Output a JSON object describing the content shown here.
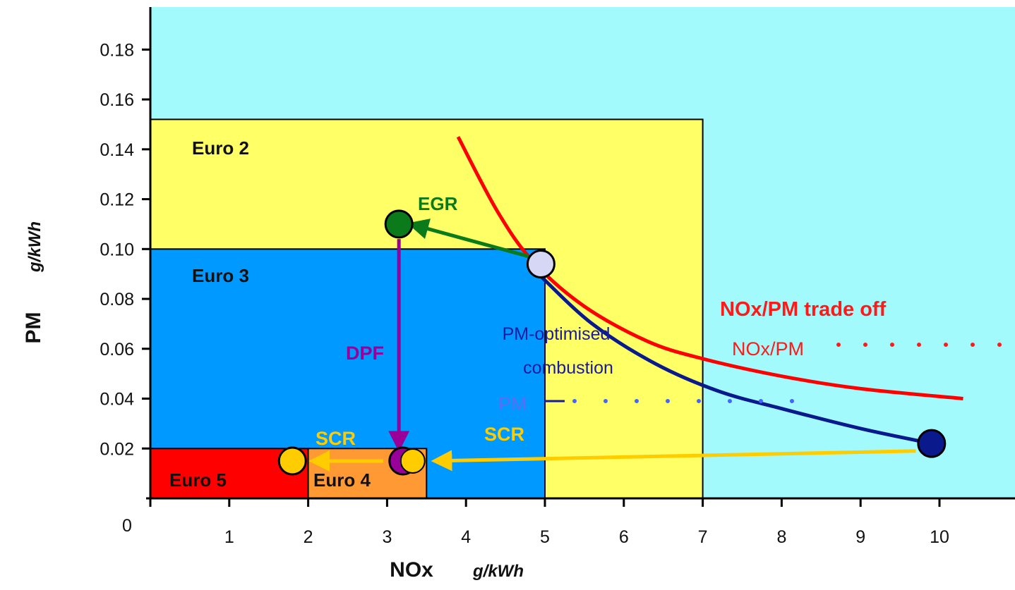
{
  "chart_data": {
    "type": "scatter",
    "title": "",
    "xlabel": "NOx",
    "xunit": "g/kWh",
    "ylabel": "PM",
    "yunit": "g/kWh",
    "xlim": [
      0,
      11
    ],
    "ylim": [
      0,
      0.19
    ],
    "origin_label": "0",
    "x_ticks": [
      1,
      2,
      3,
      4,
      5,
      6,
      7,
      8,
      9,
      10
    ],
    "y_ticks": [
      0.02,
      0.04,
      0.06,
      0.08,
      0.1,
      0.12,
      0.14,
      0.16,
      0.18
    ],
    "y_tick_labels": [
      "0.02",
      "0.04",
      "0.06",
      "0.08",
      "0.10",
      "0.12",
      "0.14",
      "0.16",
      "0.18"
    ],
    "background_color": "#a3fafc",
    "regions": [
      {
        "label": "Euro 2",
        "nox": 7.0,
        "pm": 0.152,
        "color": "#ffff66"
      },
      {
        "label": "Euro 3",
        "nox": 5.0,
        "pm": 0.1,
        "color": "#0099ff"
      },
      {
        "label": "Euro 4",
        "nox": 3.5,
        "pm": 0.02,
        "color": "#ff9933"
      },
      {
        "label": "Euro 5",
        "nox": 2.0,
        "pm": 0.02,
        "color": "#ff0000"
      }
    ],
    "tradeoff_curve": {
      "label": "NOx/PM trade off",
      "color": "#ff0000",
      "points": [
        [
          3.9,
          0.145
        ],
        [
          4.4,
          0.115
        ],
        [
          4.85,
          0.095
        ],
        [
          5.5,
          0.077
        ],
        [
          6.3,
          0.063
        ],
        [
          7.0,
          0.056
        ],
        [
          8.0,
          0.049
        ],
        [
          9.0,
          0.044
        ],
        [
          10.3,
          0.04
        ]
      ]
    },
    "pm_curve": {
      "color": "#0a1a8c",
      "points": [
        [
          4.95,
          0.089
        ],
        [
          5.6,
          0.07
        ],
        [
          6.4,
          0.054
        ],
        [
          7.2,
          0.043
        ],
        [
          8.0,
          0.036
        ],
        [
          9.0,
          0.028
        ],
        [
          9.9,
          0.022
        ]
      ]
    },
    "points": [
      {
        "name": "base",
        "nox": 4.95,
        "pm": 0.094,
        "color": "#d6d6f5"
      },
      {
        "name": "egr",
        "nox": 3.15,
        "pm": 0.11,
        "color": "#0a7a1a"
      },
      {
        "name": "dpf",
        "nox": 3.2,
        "pm": 0.015,
        "color": "#990099"
      },
      {
        "name": "pm-optimised",
        "nox": 9.9,
        "pm": 0.022,
        "color": "#0a1a8c"
      },
      {
        "name": "scr-euro5",
        "nox": 1.8,
        "pm": 0.015,
        "color": "#ffcc00"
      }
    ],
    "arrows": [
      {
        "label": "EGR",
        "color": "#0a7a1a",
        "from": [
          4.8,
          0.097
        ],
        "to": [
          3.3,
          0.11
        ]
      },
      {
        "label": "DPF",
        "color": "#990099",
        "from": [
          3.15,
          0.104
        ],
        "to": [
          3.15,
          0.02
        ]
      },
      {
        "label": "SCR",
        "color": "#ffcc00",
        "from": [
          9.7,
          0.019
        ],
        "to": [
          3.6,
          0.015
        ]
      },
      {
        "label": "SCR",
        "color": "#ffcc00",
        "from": [
          2.95,
          0.015
        ],
        "to": [
          2.05,
          0.015
        ]
      }
    ],
    "annotations": {
      "tradeoff_title": "NOx/PM trade off",
      "nox_pm": "NOx/PM",
      "pm_optimised_line1": "PM-optimised",
      "pm_optimised_line2": "combustion",
      "pm": "PM",
      "egr": "EGR",
      "dpf": "DPF",
      "scr_right": "SCR",
      "scr_left": "SCR"
    },
    "grid": false,
    "legend": "none"
  }
}
